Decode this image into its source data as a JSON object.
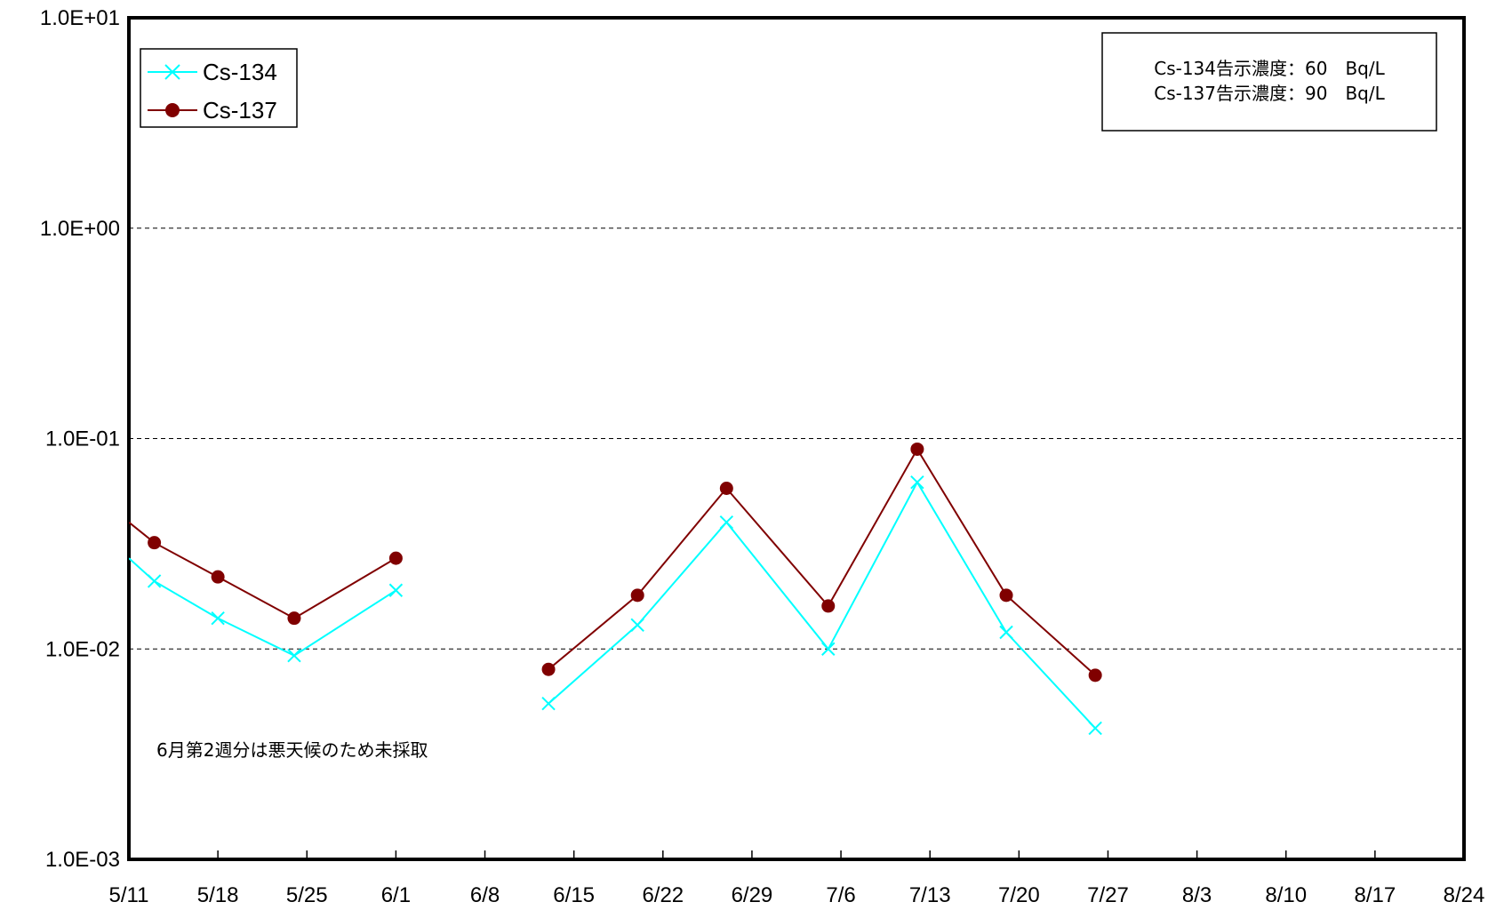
{
  "chart_data": {
    "type": "line",
    "title": "",
    "xlabel": "",
    "ylabel": "",
    "y_scale": "log",
    "ylim": [
      0.001,
      10
    ],
    "y_ticks": [
      "1.0E-03",
      "1.0E-02",
      "1.0E-01",
      "1.0E+00",
      "1.0E+01"
    ],
    "x_ticks": [
      "5/11",
      "5/18",
      "5/25",
      "6/1",
      "6/8",
      "6/15",
      "6/22",
      "6/29",
      "7/6",
      "7/13",
      "7/20",
      "7/27",
      "8/3",
      "8/10",
      "8/17",
      "8/24"
    ],
    "xlim": [
      "5/11",
      "8/24"
    ],
    "grid": "horizontal dashed",
    "legend_position": "top-left",
    "series": [
      {
        "name": "Cs-134",
        "color": "#00FFFF",
        "marker": "x",
        "points": [
          {
            "x": "5/11",
            "y": 0.027
          },
          {
            "x": "5/13",
            "y": 0.021
          },
          {
            "x": "5/18",
            "y": 0.014
          },
          {
            "x": "5/24",
            "y": 0.0093
          },
          {
            "x": "6/1",
            "y": 0.019
          },
          {
            "x": "6/13",
            "y": 0.0055
          },
          {
            "x": "6/20",
            "y": 0.013
          },
          {
            "x": "6/27",
            "y": 0.04
          },
          {
            "x": "7/5",
            "y": 0.01
          },
          {
            "x": "7/12",
            "y": 0.062
          },
          {
            "x": "7/19",
            "y": 0.012
          },
          {
            "x": "7/26",
            "y": 0.0042
          }
        ]
      },
      {
        "name": "Cs-137",
        "color": "#800000",
        "marker": "circle",
        "points": [
          {
            "x": "5/11",
            "y": 0.04
          },
          {
            "x": "5/13",
            "y": 0.032
          },
          {
            "x": "5/18",
            "y": 0.022
          },
          {
            "x": "5/24",
            "y": 0.014
          },
          {
            "x": "6/1",
            "y": 0.027
          },
          {
            "x": "6/13",
            "y": 0.008
          },
          {
            "x": "6/20",
            "y": 0.018
          },
          {
            "x": "6/27",
            "y": 0.058
          },
          {
            "x": "7/5",
            "y": 0.016
          },
          {
            "x": "7/12",
            "y": 0.089
          },
          {
            "x": "7/19",
            "y": 0.018
          },
          {
            "x": "7/26",
            "y": 0.0075
          }
        ]
      }
    ],
    "annotations": {
      "box_lines": [
        "Cs-134告示濃度：60　Bq/L",
        "Cs-137告示濃度：90　Bq/L"
      ],
      "note": "6月第2週分は悪天候のため未採取"
    }
  }
}
